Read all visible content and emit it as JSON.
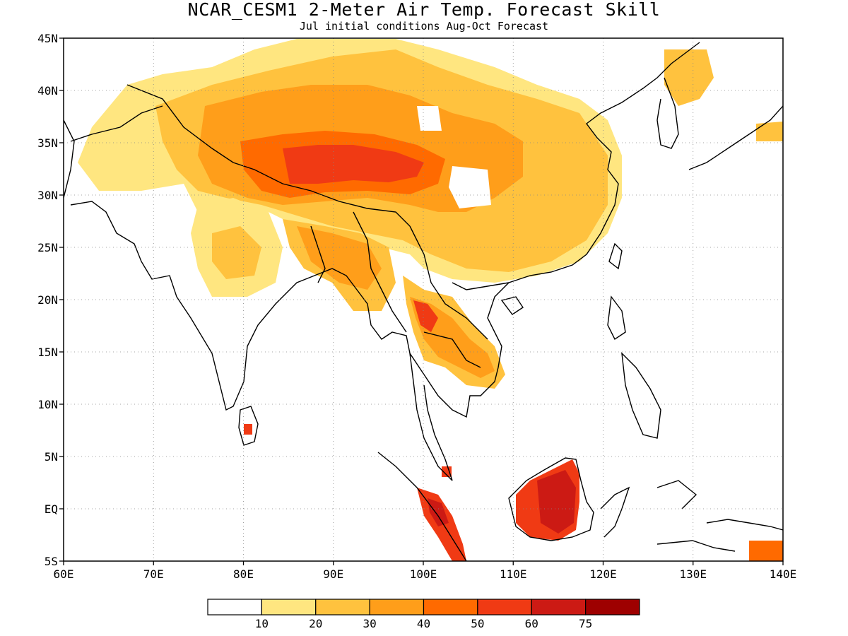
{
  "header": {
    "title": "NCAR_CESM1 2-Meter Air Temp. Forecast Skill",
    "subtitle": "Jul initial conditions  Aug-Oct Forecast"
  },
  "map": {
    "region": "South and Southeast Asia",
    "lon_range": [
      60,
      140
    ],
    "lat_range": [
      -5,
      45
    ],
    "lat_labels": [
      "45N",
      "40N",
      "35N",
      "30N",
      "25N",
      "20N",
      "15N",
      "10N",
      "5N",
      "EQ",
      "5S"
    ],
    "lon_labels": [
      "60E",
      "70E",
      "80E",
      "90E",
      "100E",
      "110E",
      "120E",
      "130E",
      "140E"
    ],
    "gridlines": "dotted"
  },
  "colorbar": {
    "labels": [
      "10",
      "20",
      "30",
      "40",
      "50",
      "60",
      "75"
    ],
    "colors": [
      "#ffffff",
      "#ffe680",
      "#ffc23e",
      "#ff9e1a",
      "#ff6a00",
      "#f03a14",
      "#cc1a14",
      "#9e0000"
    ]
  }
}
